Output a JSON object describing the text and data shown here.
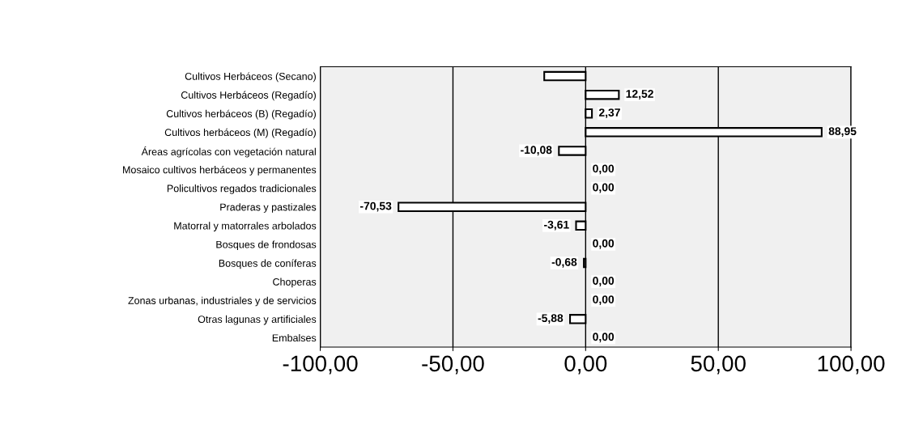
{
  "chart_data": {
    "type": "bar",
    "orientation": "horizontal",
    "categories": [
      "Cultivos Herbáceos (Secano)",
      "Cultivos Herbáceos (Regadío)",
      "Cultivos herbáceos (B) (Regadío)",
      "Cultivos herbáceos (M) (Regadío)",
      "Áreas agrícolas con vegetación natural",
      "Mosaico cultivos herbáceos y permanentes",
      "Policultivos regados tradicionales",
      "Praderas y pastizales",
      "Matorral y matorrales arbolados",
      "Bosques de frondosas",
      "Bosques de coníferas",
      "Choperas",
      "Zonas urbanas, industriales y de servicios",
      "Otras lagunas y artificiales",
      "Embalses"
    ],
    "values": [
      -15.6,
      12.52,
      2.37,
      88.95,
      -10.08,
      0.0,
      0.0,
      -70.53,
      -3.61,
      0.0,
      -0.68,
      0.0,
      0.0,
      -5.88,
      0.0
    ],
    "value_labels": [
      null,
      "12,52",
      "2,37",
      "88,95",
      "-10,08",
      "0,00",
      "0,00",
      "-70,53",
      "-3,61",
      "0,00",
      "-0,68",
      "0,00",
      "0,00",
      "-5,88",
      "0,00"
    ],
    "color": "#ffffff",
    "xlim": [
      -100,
      100
    ],
    "xticks": [
      {
        "value": -100,
        "label": "-100,00"
      },
      {
        "value": -50,
        "label": "-50,00"
      },
      {
        "value": 0,
        "label": "0,00"
      },
      {
        "value": 50,
        "label": "50,00"
      },
      {
        "value": 100,
        "label": "100,00"
      }
    ],
    "grid": "x",
    "legend": false
  }
}
